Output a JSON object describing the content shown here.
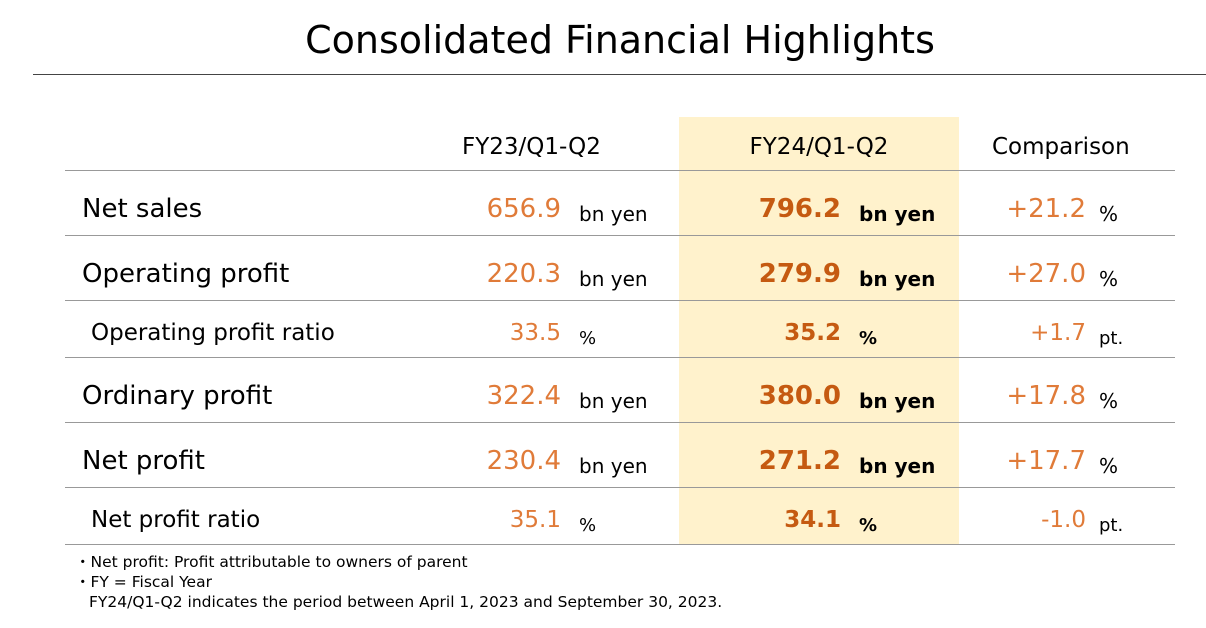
{
  "title": "Consolidated Financial Highlights",
  "headers": {
    "fy23": "FY23/Q1-Q2",
    "fy24": "FY24/Q1-Q2",
    "comparison": "Comparison"
  },
  "rows": [
    {
      "label": "Net sales",
      "fy23": "656.9",
      "fy23_unit": "bn yen",
      "fy24": "796.2",
      "fy24_unit": "bn yen",
      "cmp": "+21.2",
      "cmp_unit": "%"
    },
    {
      "label": "Operating profit",
      "fy23": "220.3",
      "fy23_unit": "bn yen",
      "fy24": "279.9",
      "fy24_unit": "bn yen",
      "cmp": "+27.0",
      "cmp_unit": "%"
    },
    {
      "label": "Operating profit ratio",
      "fy23": "33.5",
      "fy23_unit": "%",
      "fy24": "35.2",
      "fy24_unit": "%",
      "cmp": "+1.7",
      "cmp_unit": "pt."
    },
    {
      "label": "Ordinary profit",
      "fy23": "322.4",
      "fy23_unit": "bn yen",
      "fy24": "380.0",
      "fy24_unit": "bn yen",
      "cmp": "+17.8",
      "cmp_unit": "%"
    },
    {
      "label": "Net profit",
      "fy23": "230.4",
      "fy23_unit": "bn yen",
      "fy24": "271.2",
      "fy24_unit": "bn yen",
      "cmp": "+17.7",
      "cmp_unit": "%"
    },
    {
      "label": "Net profit ratio",
      "fy23": "35.1",
      "fy23_unit": "%",
      "fy24": "34.1",
      "fy24_unit": "%",
      "cmp": "-1.0",
      "cmp_unit": "pt."
    }
  ],
  "notes": [
    "・Net profit: Profit attributable to owners of parent",
    "・FY = Fiscal Year",
    "FY24/Q1-Q2 indicates the period between April 1, 2023 and September 30, 2023."
  ],
  "colors": {
    "value": "#e07b39",
    "highlight_value": "#c55a11",
    "highlight_bg": "#fff2cc"
  }
}
